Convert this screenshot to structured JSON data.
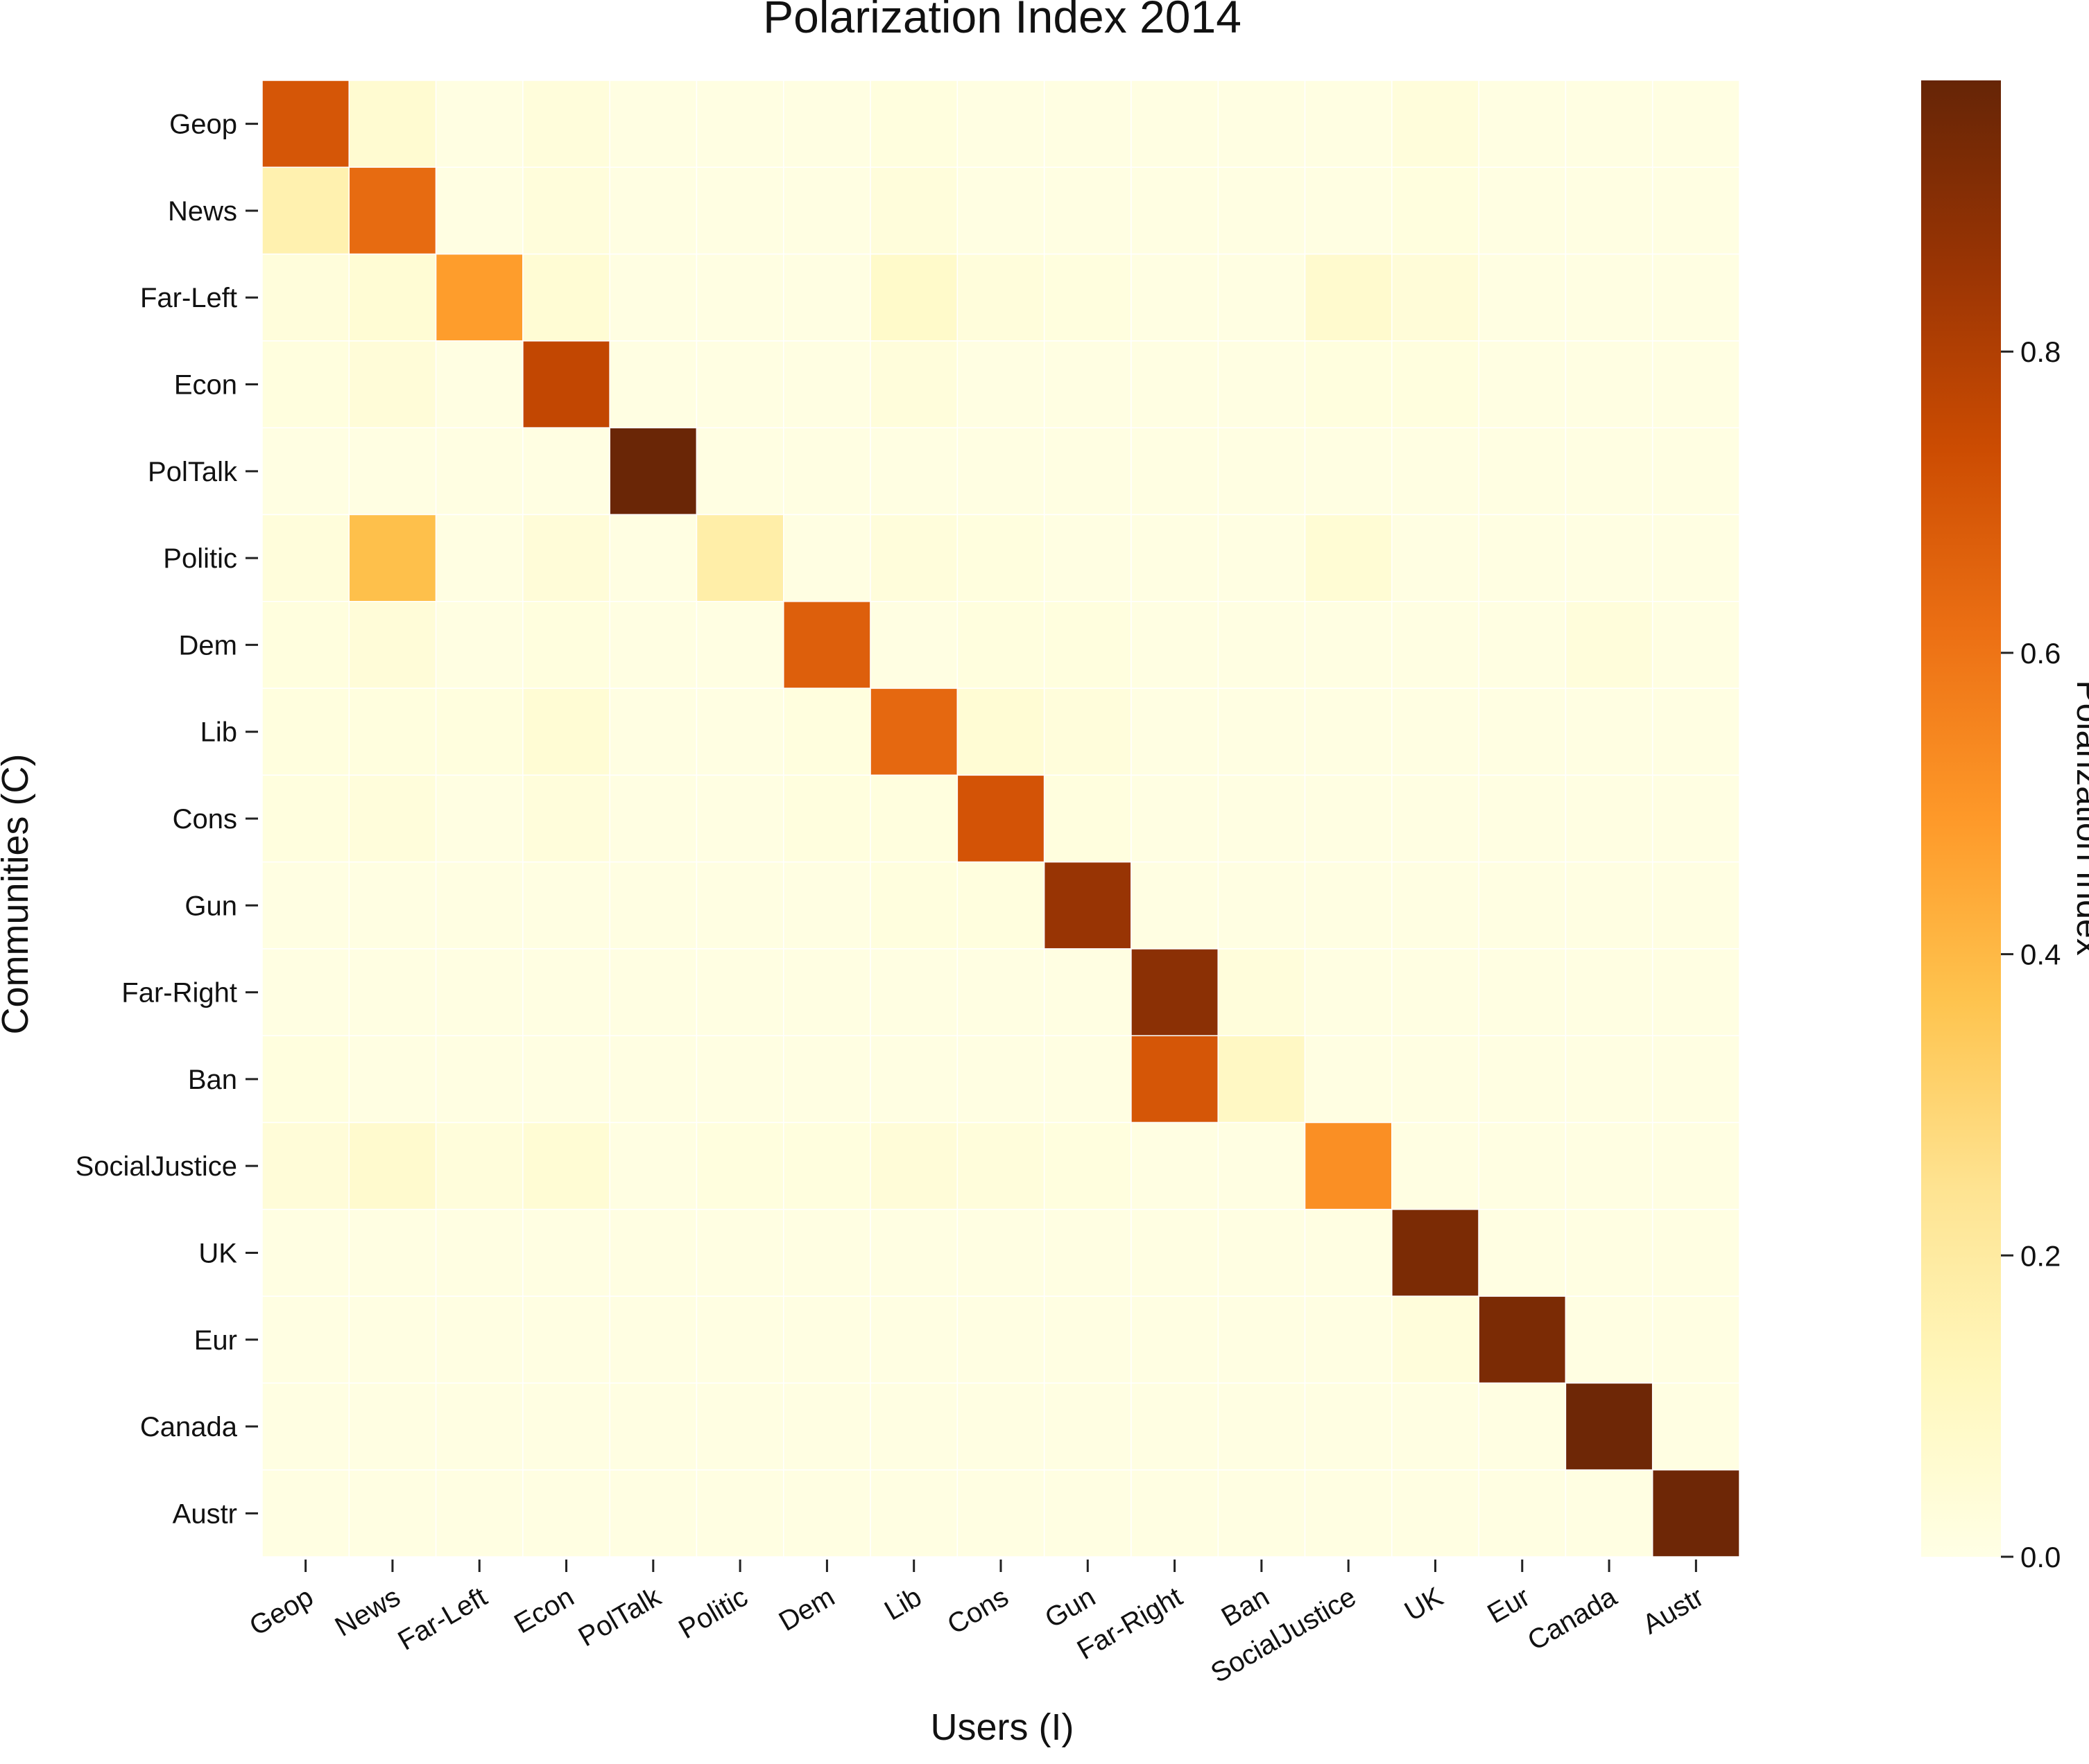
{
  "chart_data": {
    "type": "heatmap",
    "title": "Polarization Index 2014",
    "xlabel": "Users (I)",
    "ylabel": "Communities (C)",
    "x_categories": [
      "Geop",
      "News",
      "Far-Left",
      "Econ",
      "PolTalk",
      "Politic",
      "Dem",
      "Lib",
      "Cons",
      "Gun",
      "Far-Right",
      "Ban",
      "SocialJustice",
      "UK",
      "Eur",
      "Canada",
      "Austr"
    ],
    "y_categories": [
      "Geop",
      "News",
      "Far-Left",
      "Econ",
      "PolTalk",
      "Politic",
      "Dem",
      "Lib",
      "Cons",
      "Gun",
      "Far-Right",
      "Ban",
      "SocialJustice",
      "UK",
      "Eur",
      "Canada",
      "Austr"
    ],
    "values": [
      [
        0.7,
        0.06,
        0.01,
        0.03,
        0.01,
        0.01,
        0.01,
        0.02,
        0.01,
        0.01,
        0.01,
        0.01,
        0.01,
        0.03,
        0.01,
        0.01,
        0.01
      ],
      [
        0.16,
        0.63,
        0.01,
        0.03,
        0.01,
        0.01,
        0.01,
        0.03,
        0.01,
        0.01,
        0.01,
        0.01,
        0.01,
        0.02,
        0.01,
        0.01,
        0.01
      ],
      [
        0.03,
        0.05,
        0.48,
        0.05,
        0.01,
        0.01,
        0.01,
        0.08,
        0.03,
        0.02,
        0.01,
        0.01,
        0.07,
        0.04,
        0.01,
        0.01,
        0.01
      ],
      [
        0.02,
        0.04,
        0.01,
        0.76,
        0.01,
        0.01,
        0.01,
        0.03,
        0.01,
        0.01,
        0.01,
        0.01,
        0.02,
        0.02,
        0.01,
        0.01,
        0.01
      ],
      [
        0.01,
        0.01,
        0.01,
        0.01,
        0.97,
        0.01,
        0.01,
        0.01,
        0.01,
        0.01,
        0.01,
        0.01,
        0.01,
        0.01,
        0.01,
        0.01,
        0.01
      ],
      [
        0.03,
        0.38,
        0.01,
        0.04,
        0.01,
        0.18,
        0.01,
        0.03,
        0.02,
        0.01,
        0.01,
        0.01,
        0.05,
        0.01,
        0.01,
        0.01,
        0.01
      ],
      [
        0.02,
        0.04,
        0.01,
        0.02,
        0.01,
        0.01,
        0.67,
        0.01,
        0.02,
        0.02,
        0.01,
        0.01,
        0.01,
        0.01,
        0.01,
        0.03,
        0.01
      ],
      [
        0.02,
        0.02,
        0.02,
        0.05,
        0.01,
        0.01,
        0.02,
        0.64,
        0.05,
        0.03,
        0.01,
        0.01,
        0.01,
        0.01,
        0.01,
        0.01,
        0.01
      ],
      [
        0.02,
        0.03,
        0.01,
        0.03,
        0.01,
        0.01,
        0.02,
        0.02,
        0.71,
        0.02,
        0.01,
        0.01,
        0.01,
        0.01,
        0.01,
        0.01,
        0.01
      ],
      [
        0.01,
        0.01,
        0.01,
        0.01,
        0.01,
        0.01,
        0.01,
        0.02,
        0.02,
        0.86,
        0.01,
        0.01,
        0.01,
        0.01,
        0.01,
        0.01,
        0.01
      ],
      [
        0.01,
        0.01,
        0.01,
        0.01,
        0.01,
        0.01,
        0.01,
        0.01,
        0.01,
        0.01,
        0.89,
        0.03,
        0.01,
        0.01,
        0.01,
        0.01,
        0.01
      ],
      [
        0.02,
        0.01,
        0.01,
        0.01,
        0.01,
        0.01,
        0.01,
        0.01,
        0.01,
        0.01,
        0.7,
        0.1,
        0.01,
        0.01,
        0.01,
        0.01,
        0.01
      ],
      [
        0.04,
        0.07,
        0.03,
        0.05,
        0.01,
        0.02,
        0.02,
        0.04,
        0.03,
        0.02,
        0.01,
        0.01,
        0.52,
        0.01,
        0.01,
        0.01,
        0.01
      ],
      [
        0.01,
        0.01,
        0.01,
        0.01,
        0.01,
        0.01,
        0.01,
        0.01,
        0.01,
        0.01,
        0.01,
        0.01,
        0.01,
        0.93,
        0.01,
        0.01,
        0.01
      ],
      [
        0.01,
        0.01,
        0.01,
        0.01,
        0.01,
        0.01,
        0.01,
        0.01,
        0.01,
        0.01,
        0.01,
        0.01,
        0.01,
        0.03,
        0.93,
        0.01,
        0.01
      ],
      [
        0.01,
        0.01,
        0.01,
        0.01,
        0.01,
        0.01,
        0.01,
        0.01,
        0.01,
        0.01,
        0.01,
        0.01,
        0.01,
        0.01,
        0.01,
        0.96,
        0.01
      ],
      [
        0.01,
        0.01,
        0.01,
        0.01,
        0.01,
        0.01,
        0.01,
        0.01,
        0.01,
        0.01,
        0.01,
        0.01,
        0.01,
        0.01,
        0.01,
        0.01,
        0.96
      ]
    ],
    "colorbar": {
      "label": "Polarization Index",
      "vmin": 0.0,
      "vmax": 0.98,
      "ticks": [
        0.0,
        0.2,
        0.4,
        0.6,
        0.8
      ],
      "tick_labels": [
        "0.0",
        "0.2",
        "0.4",
        "0.6",
        "0.8"
      ],
      "colormap": "YlOrBr",
      "stops": [
        "#ffffe5",
        "#fff7bc",
        "#fee391",
        "#fec44f",
        "#fe9929",
        "#ec7014",
        "#cc4c02",
        "#993404",
        "#662506"
      ]
    }
  }
}
